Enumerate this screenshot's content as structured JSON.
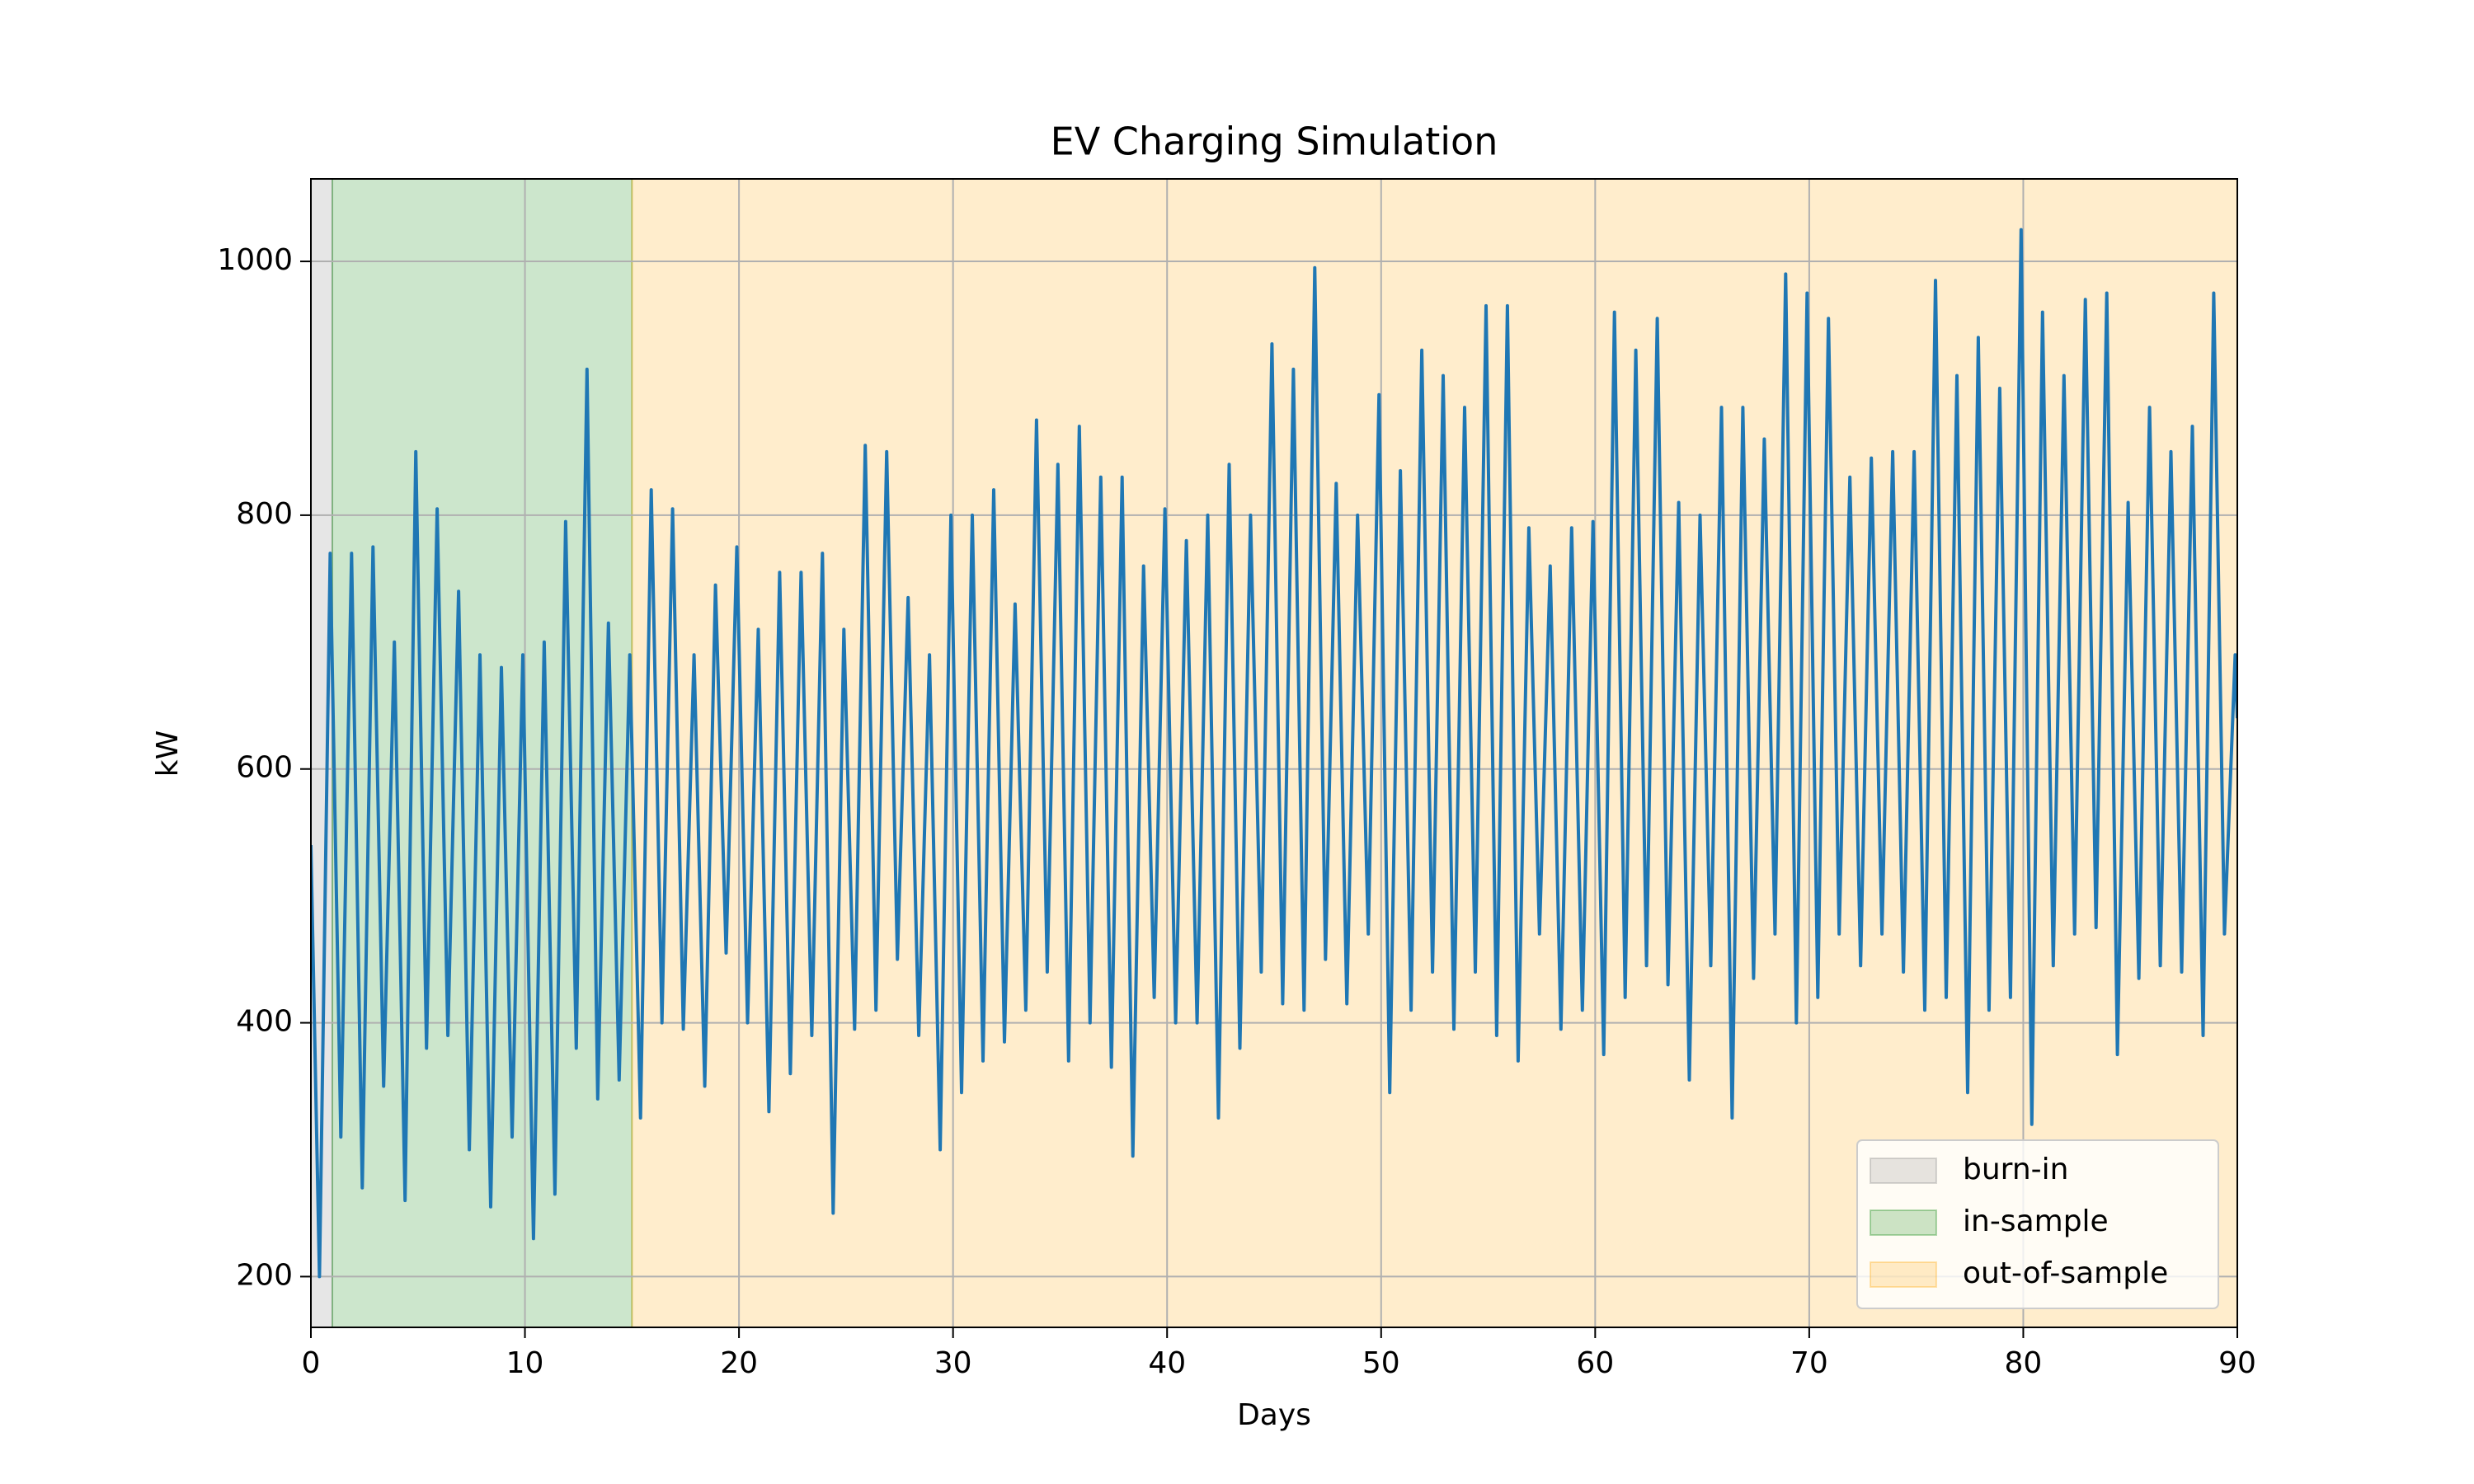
{
  "chart_data": {
    "type": "line",
    "title": "EV Charging Simulation",
    "xlabel": "Days",
    "ylabel": "kW",
    "xlim": [
      0,
      90
    ],
    "ylim": [
      160,
      1065
    ],
    "xticks": [
      0,
      10,
      20,
      30,
      40,
      50,
      60,
      70,
      80,
      90
    ],
    "yticks": [
      200,
      400,
      600,
      800,
      1000
    ],
    "grid": true,
    "legend": "lower right",
    "spans": [
      {
        "name": "burn-in",
        "start": 0,
        "end": 1,
        "color": "gray",
        "alpha": 0.2
      },
      {
        "name": "in-sample",
        "start": 1,
        "end": 15,
        "color": "green",
        "alpha": 0.2
      },
      {
        "name": "out-of-sample",
        "start": 15,
        "end": 90,
        "color": "orange",
        "alpha": 0.2
      }
    ],
    "x": [
      0,
      0.4,
      0.9,
      1.4,
      1.9,
      2.4,
      2.9,
      3.4,
      3.9,
      4.4,
      4.9,
      5.4,
      5.9,
      6.4,
      6.9,
      7.4,
      7.9,
      8.4,
      8.9,
      9.4,
      9.9,
      10.4,
      10.9,
      11.4,
      11.9,
      12.4,
      12.9,
      13.4,
      13.9,
      14.4,
      14.9,
      15.4,
      15.9,
      16.4,
      16.9,
      17.4,
      17.9,
      18.4,
      18.9,
      19.4,
      19.9,
      20.4,
      20.9,
      21.4,
      21.9,
      22.4,
      22.9,
      23.4,
      23.9,
      24.4,
      24.9,
      25.4,
      25.9,
      26.4,
      26.9,
      27.4,
      27.9,
      28.4,
      28.9,
      29.4,
      29.9,
      30.4,
      30.9,
      31.4,
      31.9,
      32.4,
      32.9,
      33.4,
      33.9,
      34.4,
      34.9,
      35.4,
      35.9,
      36.4,
      36.9,
      37.4,
      37.9,
      38.4,
      38.9,
      39.4,
      39.9,
      40.4,
      40.9,
      41.4,
      41.9,
      42.4,
      42.9,
      43.4,
      43.9,
      44.4,
      44.9,
      45.4,
      45.9,
      46.4,
      46.9,
      47.4,
      47.9,
      48.4,
      48.9,
      49.4,
      49.9,
      50.4,
      50.9,
      51.4,
      51.9,
      52.4,
      52.9,
      53.4,
      53.9,
      54.4,
      54.9,
      55.4,
      55.9,
      56.4,
      56.9,
      57.4,
      57.9,
      58.4,
      58.9,
      59.4,
      59.9,
      60.4,
      60.9,
      61.4,
      61.9,
      62.4,
      62.9,
      63.4,
      63.9,
      64.4,
      64.9,
      65.4,
      65.9,
      66.4,
      66.9,
      67.4,
      67.9,
      68.4,
      68.9,
      69.4,
      69.9,
      70.4,
      70.9,
      71.4,
      71.9,
      72.4,
      72.9,
      73.4,
      73.9,
      74.4,
      74.9,
      75.4,
      75.9,
      76.4,
      76.9,
      77.4,
      77.9,
      78.4,
      78.9,
      79.4,
      79.9,
      80.4,
      80.9,
      81.4,
      81.9,
      82.4,
      82.9,
      83.4,
      83.9,
      84.4,
      84.9,
      85.4,
      85.9,
      86.4,
      86.9,
      87.4,
      87.9,
      88.4,
      88.9,
      89.4,
      89.9,
      90
    ],
    "series": [
      {
        "name": "kW",
        "color": "#1f77b4",
        "values": [
          540,
          200,
          770,
          310,
          770,
          270,
          775,
          350,
          700,
          260,
          850,
          380,
          805,
          390,
          740,
          300,
          690,
          255,
          680,
          310,
          690,
          230,
          700,
          265,
          795,
          380,
          915,
          340,
          715,
          355,
          690,
          325,
          820,
          400,
          805,
          395,
          690,
          350,
          745,
          455,
          775,
          400,
          710,
          330,
          755,
          360,
          755,
          390,
          770,
          250,
          710,
          395,
          855,
          410,
          850,
          450,
          735,
          390,
          690,
          300,
          800,
          345,
          800,
          370,
          820,
          385,
          730,
          410,
          875,
          440,
          840,
          370,
          870,
          400,
          830,
          365,
          830,
          295,
          760,
          420,
          805,
          400,
          780,
          400,
          800,
          325,
          840,
          380,
          800,
          440,
          935,
          415,
          915,
          410,
          995,
          450,
          825,
          415,
          800,
          470,
          895,
          345,
          835,
          410,
          930,
          440,
          910,
          395,
          885,
          440,
          965,
          390,
          965,
          370,
          790,
          470,
          760,
          395,
          790,
          410,
          795,
          375,
          960,
          420,
          930,
          445,
          955,
          430,
          810,
          355,
          800,
          445,
          885,
          325,
          885,
          435,
          860,
          470,
          990,
          400,
          975,
          420,
          955,
          470,
          830,
          445,
          845,
          470,
          850,
          440,
          850,
          410,
          985,
          420,
          910,
          345,
          940,
          410,
          900,
          420,
          1025,
          320,
          960,
          445,
          910,
          470,
          970,
          475,
          975,
          375,
          810,
          435,
          885,
          445,
          850,
          440,
          870,
          390,
          975,
          470,
          690,
          640
        ]
      }
    ]
  }
}
